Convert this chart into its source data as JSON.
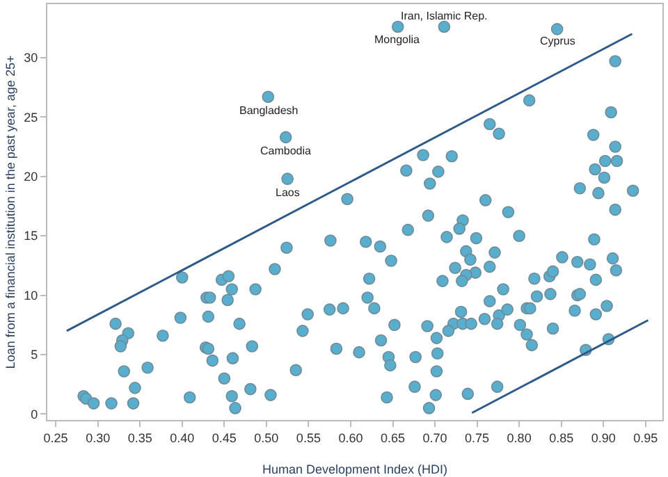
{
  "chart_data": {
    "type": "scatter",
    "xlabel": "Human Development Index (HDI)",
    "ylabel": "Loan from a financial institution in the past year, age 25+",
    "xlim": [
      0.24,
      0.97
    ],
    "ylim": [
      -0.5,
      34.5
    ],
    "xticks": [
      {
        "value": 0.25,
        "label": "0.25"
      },
      {
        "value": 0.3,
        "label": "0.30"
      },
      {
        "value": 0.35,
        "label": "0.35"
      },
      {
        "value": 0.4,
        "label": "0.40"
      },
      {
        "value": 0.45,
        "label": "0.45"
      },
      {
        "value": 0.5,
        "label": "0.50"
      },
      {
        "value": 0.55,
        "label": "0.55"
      },
      {
        "value": 0.6,
        "label": "0.60"
      },
      {
        "value": 0.65,
        "label": "0.65"
      },
      {
        "value": 0.7,
        "label": "0.70"
      },
      {
        "value": 0.75,
        "label": "0.75"
      },
      {
        "value": 0.8,
        "label": "0.80"
      },
      {
        "value": 0.85,
        "label": "0.85"
      },
      {
        "value": 0.9,
        "label": "0.90"
      },
      {
        "value": 0.95,
        "label": "0.95"
      }
    ],
    "yticks": [
      0,
      5,
      10,
      15,
      20,
      25,
      30
    ],
    "series": [
      {
        "marker": "circle",
        "color": "#5aaecd",
        "x": [
          0.283,
          0.286,
          0.295,
          0.316,
          0.342,
          0.321,
          0.336,
          0.329,
          0.327,
          0.331,
          0.344,
          0.359,
          0.377,
          0.398,
          0.4,
          0.409,
          0.429,
          0.433,
          0.431,
          0.428,
          0.431,
          0.436,
          0.447,
          0.455,
          0.459,
          0.454,
          0.468,
          0.46,
          0.45,
          0.459,
          0.463,
          0.481,
          0.483,
          0.487,
          0.505,
          0.51,
          0.524,
          0.535,
          0.543,
          0.549,
          0.575,
          0.576,
          0.583,
          0.502,
          0.523,
          0.525,
          0.656,
          0.711,
          0.845,
          0.914,
          0.909,
          0.812,
          0.765,
          0.776,
          0.888,
          0.914,
          0.902,
          0.916,
          0.89,
          0.901,
          0.872,
          0.894,
          0.935,
          0.914,
          0.686,
          0.72,
          0.666,
          0.704,
          0.694,
          0.596,
          0.76,
          0.787,
          0.692,
          0.733,
          0.668,
          0.729,
          0.618,
          0.635,
          0.648,
          0.714,
          0.749,
          0.8,
          0.889,
          0.737,
          0.771,
          0.742,
          0.851,
          0.869,
          0.884,
          0.911,
          0.915,
          0.765,
          0.724,
          0.748,
          0.737,
          0.732,
          0.709,
          0.622,
          0.818,
          0.836,
          0.84,
          0.891,
          0.781,
          0.62,
          0.765,
          0.821,
          0.837,
          0.869,
          0.872,
          0.591,
          0.628,
          0.731,
          0.776,
          0.786,
          0.809,
          0.813,
          0.866,
          0.891,
          0.904,
          0.652,
          0.691,
          0.722,
          0.733,
          0.743,
          0.759,
          0.774,
          0.801,
          0.716,
          0.702,
          0.809,
          0.84,
          0.636,
          0.61,
          0.815,
          0.879,
          0.906,
          0.645,
          0.647,
          0.677,
          0.703,
          0.702,
          0.676,
          0.701,
          0.739,
          0.774,
          0.643,
          0.693
        ],
        "values": [
          1.5,
          1.3,
          0.9,
          0.9,
          0.9,
          7.6,
          6.8,
          6.2,
          5.7,
          3.6,
          2.2,
          3.9,
          6.6,
          8.1,
          11.5,
          1.4,
          9.8,
          9.8,
          8.2,
          5.6,
          5.5,
          4.5,
          11.3,
          11.6,
          10.5,
          9.6,
          7.6,
          4.7,
          3.0,
          1.5,
          0.5,
          2.1,
          5.7,
          10.5,
          1.6,
          12.2,
          14.0,
          3.7,
          7.0,
          8.4,
          8.8,
          14.6,
          5.5,
          26.7,
          23.3,
          19.8,
          32.6,
          32.6,
          32.4,
          29.7,
          25.4,
          26.4,
          24.4,
          23.6,
          23.5,
          22.5,
          21.3,
          21.3,
          20.6,
          19.9,
          19.0,
          18.6,
          18.8,
          17.2,
          21.8,
          21.7,
          20.5,
          20.4,
          19.4,
          18.1,
          18.0,
          17.0,
          16.7,
          16.3,
          15.5,
          15.6,
          14.5,
          14.1,
          12.9,
          14.9,
          14.8,
          15.0,
          14.7,
          13.7,
          13.6,
          13.0,
          13.2,
          12.8,
          12.6,
          13.1,
          12.1,
          12.4,
          12.3,
          11.9,
          11.7,
          11.2,
          11.2,
          11.4,
          11.4,
          11.6,
          12.0,
          11.3,
          10.5,
          9.8,
          9.5,
          9.9,
          10.1,
          10.0,
          10.1,
          8.9,
          8.9,
          8.6,
          8.3,
          8.8,
          8.9,
          8.9,
          8.7,
          8.4,
          9.1,
          7.5,
          7.4,
          7.6,
          7.6,
          7.6,
          8.0,
          7.6,
          7.5,
          7.0,
          6.4,
          6.7,
          7.2,
          6.2,
          5.2,
          5.8,
          5.4,
          6.3,
          4.8,
          4.1,
          4.8,
          5.1,
          3.6,
          2.3,
          1.6,
          1.7,
          2.3,
          1.4,
          0.5
        ]
      },
      {
        "type": "line",
        "color": "#2e5a8a",
        "line_style": "solid",
        "marker": "none",
        "x": [
          0.263,
          0.934
        ],
        "values": [
          7.0,
          32.0
        ]
      },
      {
        "type": "line",
        "color": "#2e5a8a",
        "line_style": "solid",
        "marker": "none",
        "x": [
          0.744,
          0.953
        ],
        "values": [
          0.1,
          7.9
        ]
      }
    ],
    "annotations": [
      {
        "text": "Bangladesh",
        "x": 0.502,
        "y": 26.7
      },
      {
        "text": "Cambodia",
        "x": 0.523,
        "y": 23.3
      },
      {
        "text": "Laos",
        "x": 0.525,
        "y": 19.8
      },
      {
        "text": "Mongolia",
        "x": 0.656,
        "y": 32.6
      },
      {
        "text": "Iran, Islamic Rep.",
        "x": 0.711,
        "y": 32.6
      },
      {
        "text": "Cyprus",
        "x": 0.845,
        "y": 32.4
      }
    ]
  }
}
